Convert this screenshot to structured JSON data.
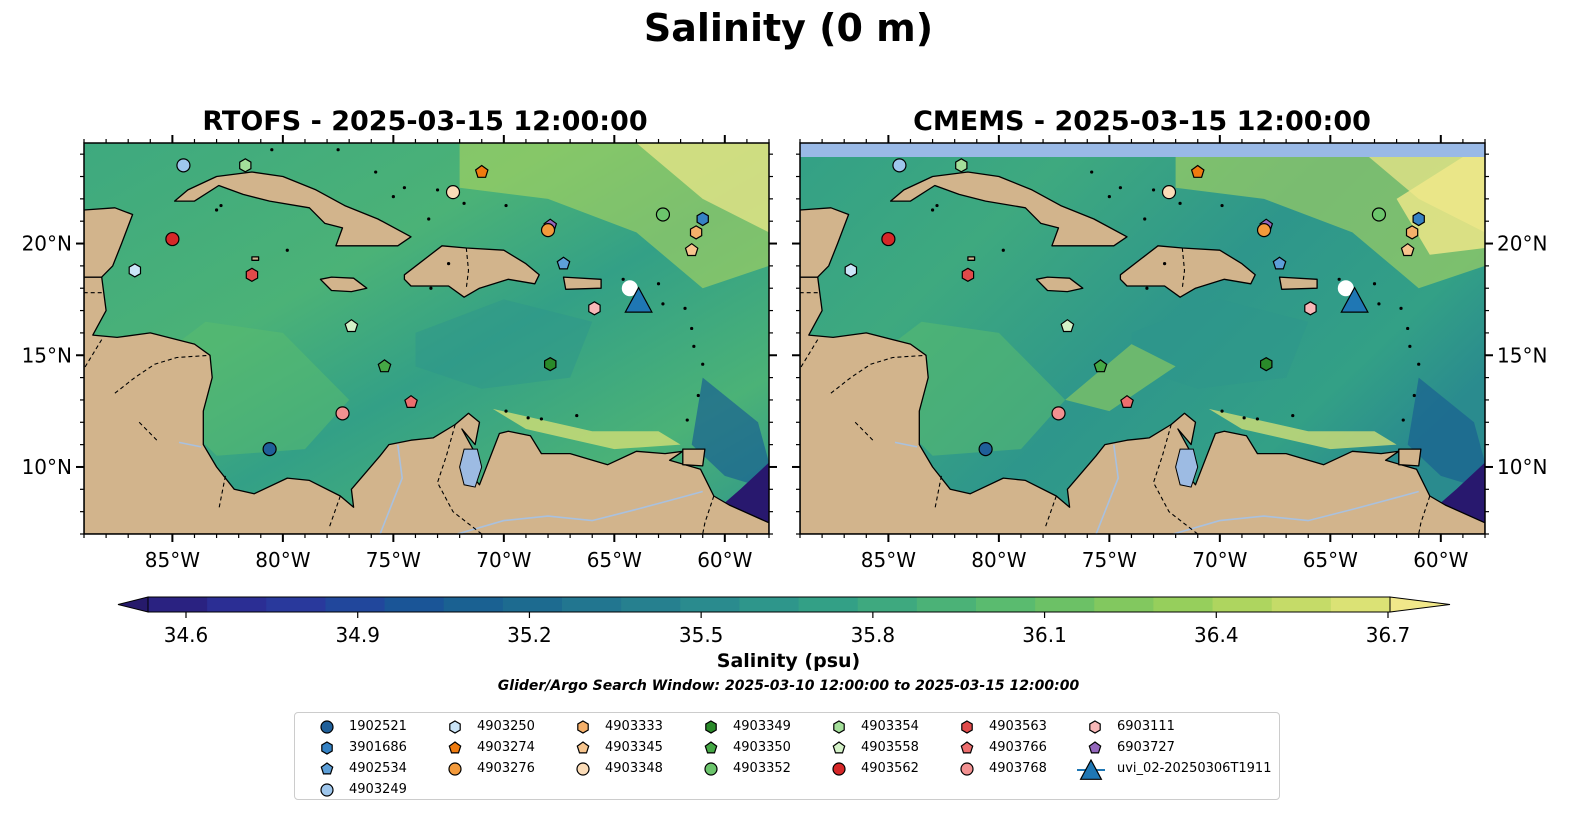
{
  "title": "Salinity (0 m)",
  "panels": [
    {
      "title": "RTOFS - 2025-03-15 12:00:00",
      "band": false
    },
    {
      "title": "CMEMS - 2025-03-15 12:00:00",
      "band": true
    }
  ],
  "axes": {
    "lon_ticks": [
      "85°W",
      "80°W",
      "75°W",
      "70°W",
      "65°W",
      "60°W"
    ],
    "lat_ticks": [
      "20°N",
      "15°N",
      "10°N"
    ],
    "lon_range": [
      -89,
      -58
    ],
    "lat_range": [
      7,
      24.5
    ]
  },
  "colorbar": {
    "ticks": [
      "34.6",
      "34.9",
      "35.2",
      "35.5",
      "35.8",
      "36.1",
      "36.4",
      "36.7"
    ],
    "range": [
      34.6,
      36.7
    ],
    "label": "Salinity (psu)",
    "colors": [
      "#261a6b",
      "#2a2281",
      "#2b2e94",
      "#29399c",
      "#21479c",
      "#1a5597",
      "#1a6192",
      "#1d6b90",
      "#227690",
      "#26808f",
      "#2a8b8e",
      "#2e968b",
      "#33a086",
      "#3ea97f",
      "#4bb277",
      "#5abb6f",
      "#6cc166",
      "#82c85f",
      "#96cf5c",
      "#aed55f",
      "#c5db68",
      "#dbe275",
      "#f1e88a"
    ]
  },
  "map_colors": {
    "land": "#d2b48c",
    "deep": "#28186e",
    "sea": "#4fae7c",
    "lake": "#9dbbe3",
    "band": "#99b9e6",
    "river": "#a9c1df"
  },
  "search_window": "Glider/Argo Search Window: 2025-03-10 12:00:00 to 2025-03-15 12:00:00",
  "legend": [
    {
      "id": "1902521",
      "marker": "circle",
      "color": "#1f5f99"
    },
    {
      "id": "3901686",
      "marker": "hexagon",
      "color": "#3582c4"
    },
    {
      "id": "4902534",
      "marker": "pentagon",
      "color": "#5d9fd8"
    },
    {
      "id": "4903249",
      "marker": "circle",
      "color": "#9ec6ec"
    },
    {
      "id": "4903250",
      "marker": "hexagon",
      "color": "#cbe5f8"
    },
    {
      "id": "4903274",
      "marker": "pentagon",
      "color": "#ef7b0f"
    },
    {
      "id": "4903276",
      "marker": "circle",
      "color": "#f39a3b"
    },
    {
      "id": "4903333",
      "marker": "hexagon",
      "color": "#f5b06a"
    },
    {
      "id": "4903345",
      "marker": "pentagon",
      "color": "#f7c58e"
    },
    {
      "id": "4903348",
      "marker": "circle",
      "color": "#fbdcb8"
    },
    {
      "id": "4903349",
      "marker": "hexagon",
      "color": "#2a8a2a"
    },
    {
      "id": "4903350",
      "marker": "pentagon",
      "color": "#45a845"
    },
    {
      "id": "4903352",
      "marker": "circle",
      "color": "#6cc56c"
    },
    {
      "id": "4903354",
      "marker": "hexagon",
      "color": "#a4df9a"
    },
    {
      "id": "4903558",
      "marker": "pentagon",
      "color": "#d4f2c8"
    },
    {
      "id": "4903562",
      "marker": "circle",
      "color": "#d62728"
    },
    {
      "id": "4903563",
      "marker": "hexagon",
      "color": "#e04a4a"
    },
    {
      "id": "4903766",
      "marker": "pentagon",
      "color": "#ec6e6e"
    },
    {
      "id": "4903768",
      "marker": "circle",
      "color": "#f29191"
    },
    {
      "id": "6903111",
      "marker": "hexagon",
      "color": "#f8b8b8"
    },
    {
      "id": "6903727",
      "marker": "pentagon",
      "color": "#9467bd"
    },
    {
      "id": "uvi_02-20250306T1911",
      "marker": "triangle",
      "color": "#1f77b4"
    }
  ],
  "floats": [
    {
      "id": "4903249",
      "lon": -84.5,
      "lat": 23.5
    },
    {
      "id": "4903354",
      "lon": -81.7,
      "lat": 23.5
    },
    {
      "id": "4903274",
      "lon": -71.0,
      "lat": 23.2
    },
    {
      "id": "4903348",
      "lon": -72.3,
      "lat": 22.3
    },
    {
      "id": "4903352",
      "lon": -62.8,
      "lat": 21.3
    },
    {
      "id": "3901686",
      "lon": -61.0,
      "lat": 21.1
    },
    {
      "id": "6903727",
      "lon": -67.9,
      "lat": 20.8
    },
    {
      "id": "4903276",
      "lon": -68.0,
      "lat": 20.6
    },
    {
      "id": "4903333",
      "lon": -61.3,
      "lat": 20.5
    },
    {
      "id": "4903562",
      "lon": -85.0,
      "lat": 20.2
    },
    {
      "id": "4903345",
      "lon": -61.5,
      "lat": 19.7
    },
    {
      "id": "4902534",
      "lon": -67.3,
      "lat": 19.1
    },
    {
      "id": "4903250",
      "lon": -86.7,
      "lat": 18.8
    },
    {
      "id": "4903563",
      "lon": -81.4,
      "lat": 18.6
    },
    {
      "id": "6903111",
      "lon": -65.9,
      "lat": 17.1
    },
    {
      "id": "4903558",
      "lon": -76.9,
      "lat": 16.3
    },
    {
      "id": "4903349",
      "lon": -67.9,
      "lat": 14.6
    },
    {
      "id": "4903350",
      "lon": -75.4,
      "lat": 14.5
    },
    {
      "id": "4903766",
      "lon": -74.2,
      "lat": 12.9
    },
    {
      "id": "4903768",
      "lon": -77.3,
      "lat": 12.4
    },
    {
      "id": "1902521",
      "lon": -80.6,
      "lat": 10.8
    }
  ],
  "glider": {
    "id": "uvi_02-20250306T1911",
    "lon": -63.9,
    "lat": 17.4
  }
}
